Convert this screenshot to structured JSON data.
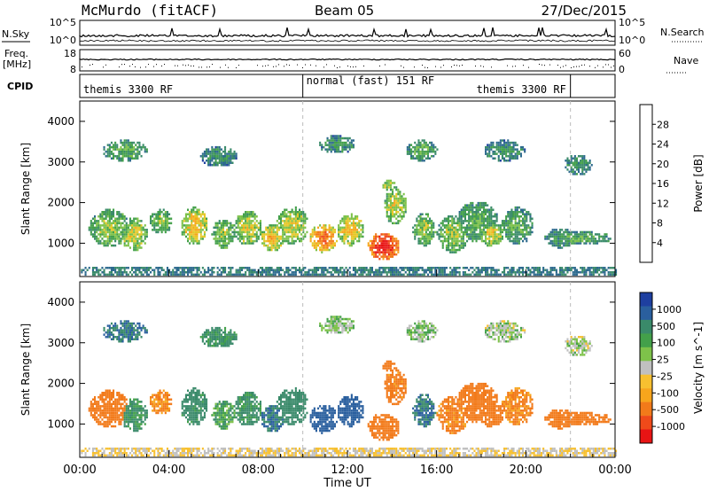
{
  "header": {
    "station": "McMurdo (fitACF)",
    "beam": "Beam 05",
    "date": "27/Dec/2015"
  },
  "strip_labels": {
    "nsky": "N.Sky",
    "nsearch": "N.Search",
    "freq": "Freq.",
    "freq_unit": "[MHz]",
    "nave": "Nave",
    "cpid": "CPID"
  },
  "strip_ticks": {
    "noise_left_top": "10^5",
    "noise_left_bottom": "10^0",
    "noise_right_top": "10^5",
    "noise_right_bottom": "10^0",
    "freq_top": "18",
    "freq_bottom": "8",
    "nave_top": "60",
    "nave_bottom": "0"
  },
  "cpid_segments": [
    {
      "label": "themis 3300 RF",
      "start_hour": 0,
      "end_hour": 10.0
    },
    {
      "label": "normal (fast) 151 RF",
      "start_hour": 10.0,
      "end_hour": 22.0
    },
    {
      "label": "themis 3300 RF",
      "start_hour": 22.0,
      "end_hour": 24
    }
  ],
  "time_axis": {
    "label": "Time UT",
    "ticks": [
      "00:00",
      "04:00",
      "08:00",
      "12:00",
      "16:00",
      "20:00",
      "00:00"
    ]
  },
  "chart_data": [
    {
      "type": "heatmap",
      "title": "",
      "xlabel": "Time UT",
      "ylabel": "Slant Range [km]",
      "xlim_hours": [
        0,
        24
      ],
      "ylim_km": [
        180,
        4500
      ],
      "yticks": [
        "1000",
        "2000",
        "3000",
        "4000"
      ],
      "colorbar": {
        "label": "Power [dB]",
        "ticks": [
          "4",
          "8",
          "12",
          "16",
          "20",
          "24",
          "28"
        ],
        "range": [
          0,
          30
        ],
        "colors": [
          "#0000ff",
          "#1e3fa0",
          "#2d6a8e",
          "#3a8a6a",
          "#43a04a",
          "#7ec24a",
          "#e6c828",
          "#f7a51c",
          "#f27a1a",
          "#ef4a1a",
          "#e81414"
        ]
      }
    },
    {
      "type": "heatmap",
      "title": "",
      "xlabel": "Time UT",
      "ylabel": "Slant Range [km]",
      "xlim_hours": [
        0,
        24
      ],
      "ylim_km": [
        180,
        4500
      ],
      "yticks": [
        "1000",
        "2000",
        "3000",
        "4000"
      ],
      "colorbar": {
        "label": "Velocity [m s^-1]",
        "ticks": [
          "1000",
          "500",
          "100",
          "25",
          "-25",
          "-100",
          "-500",
          "-1000"
        ],
        "range": [
          -1200,
          1200
        ],
        "colors": [
          "#1e3fa0",
          "#2a5f9e",
          "#3a8a6a",
          "#43a04a",
          "#7ec24a",
          "#c0c0c0",
          "#f7c030",
          "#f7a51c",
          "#f27a1a",
          "#ef4a1a",
          "#e81414"
        ]
      }
    }
  ]
}
